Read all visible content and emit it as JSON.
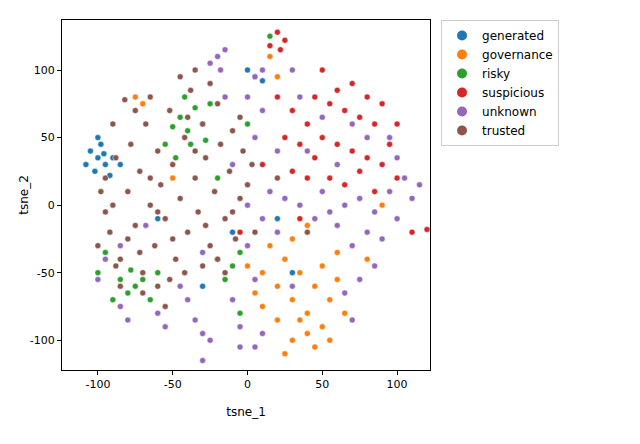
{
  "chart_data": {
    "type": "scatter",
    "x_label": "tsne_1",
    "y_label": "tsne_2",
    "xlim": [
      -124,
      122
    ],
    "ylim": [
      -122,
      137
    ],
    "xticks": [
      -100,
      -50,
      0,
      50,
      100
    ],
    "yticks": [
      -100,
      -50,
      0,
      50,
      100
    ],
    "grid": false,
    "legend": "right",
    "marker": "circle",
    "series": [
      {
        "name": "generated",
        "color": "#1f77b4",
        "x": [
          -105,
          -100,
          -95,
          -102,
          -98,
          -92,
          -96,
          -108,
          -100,
          -90,
          5,
          10,
          0,
          -85,
          20,
          -10,
          30,
          -30,
          -60
        ],
        "y": [
          40,
          35,
          30,
          25,
          45,
          22,
          38,
          30,
          50,
          35,
          95,
          92,
          100,
          30,
          -10,
          -20,
          -50,
          -60,
          -10
        ]
      },
      {
        "name": "governance",
        "color": "#ff7f0e",
        "x": [
          10,
          20,
          30,
          40,
          50,
          30,
          40,
          20,
          10,
          25,
          35,
          45,
          55,
          60,
          50,
          15,
          5,
          35,
          45,
          25,
          55,
          65,
          0,
          60,
          -75,
          -70,
          30,
          40,
          80,
          15,
          20,
          90,
          -50
        ],
        "y": [
          -50,
          -60,
          -70,
          -80,
          -90,
          -100,
          -95,
          -85,
          -75,
          -40,
          -50,
          -60,
          -70,
          -55,
          -45,
          -30,
          -65,
          -85,
          -105,
          -110,
          -100,
          -80,
          -45,
          -35,
          80,
          75,
          -25,
          -15,
          -40,
          110,
          95,
          0,
          20
        ]
      },
      {
        "name": "risky",
        "color": "#2ca02c",
        "x": [
          -45,
          -40,
          -35,
          -30,
          -38,
          -50,
          -28,
          -42,
          -25,
          -55,
          -85,
          -80,
          -75,
          -70,
          -90,
          -65,
          -78,
          -60,
          -20,
          -15,
          -10,
          -5,
          15,
          0,
          -95,
          -100,
          -20,
          -5,
          -48
        ],
        "y": [
          65,
          55,
          72,
          60,
          45,
          58,
          48,
          80,
          75,
          45,
          -55,
          -65,
          -60,
          -55,
          -70,
          -70,
          -48,
          -50,
          -40,
          -55,
          -45,
          -35,
          125,
          60,
          -35,
          -50,
          20,
          -80,
          35
        ]
      },
      {
        "name": "suspicious",
        "color": "#d62728",
        "x": [
          20,
          25,
          15,
          22,
          50,
          60,
          70,
          80,
          55,
          65,
          75,
          85,
          40,
          50,
          60,
          70,
          80,
          90,
          45,
          35,
          30,
          45,
          95,
          100,
          85,
          55,
          65,
          75,
          30,
          40,
          25,
          20,
          110,
          120,
          35,
          10,
          -5,
          100,
          90
        ],
        "y": [
          128,
          122,
          118,
          115,
          100,
          85,
          90,
          80,
          75,
          70,
          65,
          60,
          60,
          50,
          45,
          40,
          35,
          30,
          35,
          45,
          70,
          80,
          45,
          20,
          10,
          20,
          15,
          25,
          25,
          20,
          50,
          80,
          -20,
          -18,
          -10,
          30,
          -20,
          60,
          75
        ]
      },
      {
        "name": "unknown",
        "color": "#9467bd",
        "x": [
          -20,
          -15,
          -25,
          -18,
          5,
          10,
          30,
          -85,
          -80,
          -60,
          -55,
          -30,
          -25,
          -35,
          -100,
          -95,
          -5,
          -85,
          0,
          10,
          20,
          15,
          25,
          35,
          45,
          55,
          65,
          75,
          85,
          95,
          105,
          110,
          115,
          100,
          90,
          80,
          70,
          60,
          50,
          40,
          60,
          80,
          95,
          100,
          70,
          50,
          35,
          20,
          5,
          10,
          0,
          5,
          -10,
          -5,
          75,
          85,
          65,
          70,
          10,
          -40,
          -45,
          -30,
          -10,
          -15,
          -68,
          -30,
          5,
          30,
          0
        ],
        "y": [
          110,
          115,
          105,
          100,
          95,
          100,
          100,
          -75,
          -85,
          -80,
          -90,
          -95,
          -100,
          -85,
          -55,
          -40,
          -105,
          -30,
          0,
          -10,
          -20,
          10,
          5,
          0,
          -10,
          -5,
          0,
          5,
          -5,
          10,
          20,
          5,
          15,
          -10,
          -25,
          -20,
          -30,
          -15,
          10,
          40,
          30,
          50,
          50,
          35,
          60,
          65,
          80,
          40,
          50,
          70,
          -30,
          -55,
          -70,
          -90,
          -55,
          -45,
          -65,
          -85,
          -95,
          -70,
          -60,
          -35,
          30,
          80,
          -15,
          -115,
          -105,
          -60,
          80
        ]
      },
      {
        "name": "trusted",
        "color": "#8c564b",
        "x": [
          -95,
          -90,
          -92,
          -88,
          -85,
          -80,
          -78,
          -75,
          -72,
          -70,
          -68,
          -65,
          -62,
          -60,
          -58,
          -55,
          -52,
          -50,
          -48,
          -45,
          -42,
          -40,
          -38,
          -35,
          -33,
          -30,
          -28,
          -25,
          -22,
          -20,
          -18,
          -15,
          -12,
          -10,
          -8,
          -5,
          -3,
          0,
          -60,
          -55,
          -70,
          -85,
          -95,
          -100,
          -98,
          -65,
          -45,
          -35,
          -30,
          -20,
          -75,
          -90,
          -82,
          -40,
          -52,
          -15,
          5,
          3,
          -25,
          -50,
          -60,
          -80,
          -42,
          -35,
          -65,
          -10,
          -5,
          -28,
          -88,
          -72,
          40,
          20
        ],
        "y": [
          20,
          0,
          -20,
          35,
          -40,
          10,
          45,
          -15,
          25,
          -50,
          60,
          0,
          -30,
          40,
          15,
          -10,
          70,
          30,
          -40,
          5,
          50,
          -20,
          85,
          20,
          -5,
          60,
          35,
          -30,
          10,
          75,
          45,
          -10,
          25,
          55,
          -25,
          5,
          40,
          15,
          -60,
          -75,
          -65,
          -60,
          -5,
          -30,
          10,
          80,
          95,
          100,
          -45,
          -40,
          70,
          60,
          78,
          65,
          -55,
          -50,
          -20,
          30,
          90,
          -25,
          -5,
          -25,
          -50,
          40,
          20,
          -5,
          65,
          -15,
          -45,
          -35,
          -20,
          20
        ]
      }
    ]
  }
}
